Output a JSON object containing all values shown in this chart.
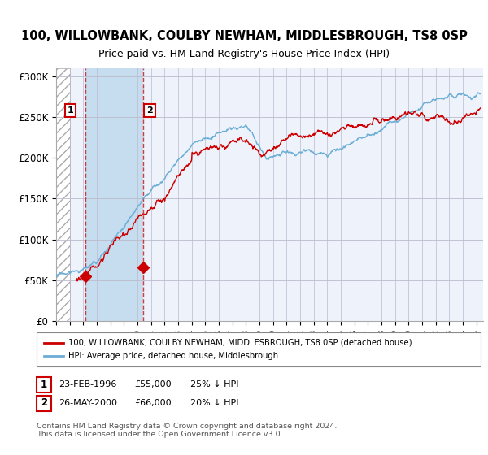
{
  "title": "100, WILLOWBANK, COULBY NEWHAM, MIDDLESBROUGH, TS8 0SP",
  "subtitle": "Price paid vs. HM Land Registry's House Price Index (HPI)",
  "sale1_date": 1996.15,
  "sale1_price": 55000,
  "sale1_label": "1",
  "sale2_date": 2000.4,
  "sale2_price": 66000,
  "sale2_label": "2",
  "xmin": 1994,
  "xmax": 2025.5,
  "ymin": 0,
  "ymax": 310000,
  "yticks": [
    0,
    50000,
    100000,
    150000,
    200000,
    250000,
    300000
  ],
  "ytick_labels": [
    "£0",
    "£50K",
    "£100K",
    "£150K",
    "£200K",
    "£250K",
    "£300K"
  ],
  "xticks": [
    1994,
    1995,
    1996,
    1997,
    1998,
    1999,
    2000,
    2001,
    2002,
    2003,
    2004,
    2005,
    2006,
    2007,
    2008,
    2009,
    2010,
    2011,
    2012,
    2013,
    2014,
    2015,
    2016,
    2017,
    2018,
    2019,
    2020,
    2021,
    2022,
    2023,
    2024,
    2025
  ],
  "hpi_color": "#6baed6",
  "price_color": "#cc0000",
  "sale_marker_color": "#cc0000",
  "legend_label_red": "100, WILLOWBANK, COULBY NEWHAM, MIDDLESBROUGH, TS8 0SP (detached house)",
  "legend_label_blue": "HPI: Average price, detached house, Middlesbrough",
  "annotation1": [
    "1",
    "23-FEB-1996",
    "£55,000",
    "25% ↓ HPI"
  ],
  "annotation2": [
    "2",
    "26-MAY-2000",
    "£66,000",
    "20% ↓ HPI"
  ],
  "footnote": "Contains HM Land Registry data © Crown copyright and database right 2024.\nThis data is licensed under the Open Government Licence v3.0.",
  "bg_color": "#eef2fb",
  "plot_bg": "#ffffff",
  "hpi_hatch_end": 1995.0,
  "sale_shade_alpha": 0.3
}
